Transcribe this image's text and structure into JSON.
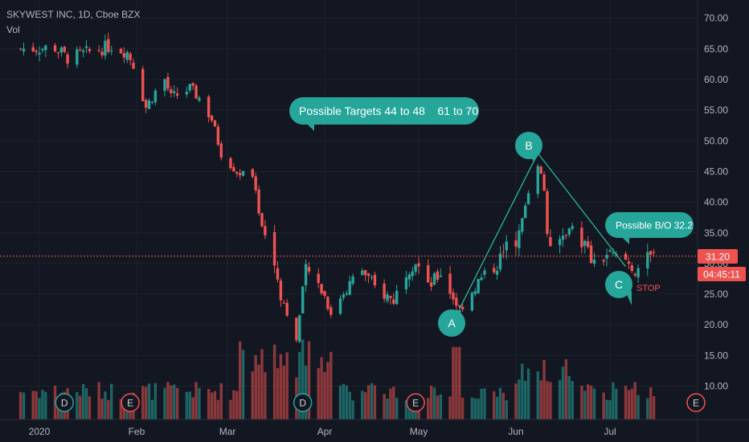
{
  "header": {
    "symbol": "SKYWEST INC, 1D, Cboe BZX",
    "vol_label": "Vol"
  },
  "price_badge": {
    "value": "31.20",
    "countdown": "04:45:11"
  },
  "colors": {
    "up": "#26a69a",
    "down": "#ef5350",
    "bg": "#131722",
    "label_fill": "#2e8f80",
    "callout": "#26a69a"
  },
  "annotations": {
    "targets": "Possible Targets 44 to 48    61 to 70",
    "breakout": "Possible B/O 32.2",
    "point_a": "A",
    "point_b": "B",
    "point_c": "C",
    "stop": "STOP"
  },
  "event_markers": [
    {
      "letter": "D",
      "date": "2020-01-09"
    },
    {
      "letter": "E",
      "date": "2020-01-30"
    },
    {
      "letter": "D",
      "date": "2020-03-25"
    },
    {
      "letter": "E",
      "date": "2020-04-30"
    },
    {
      "letter": "E",
      "date": "2020-07-30"
    }
  ],
  "chart_data": {
    "type": "candlestick",
    "title": "SKYWEST INC, 1D, Cboe BZX",
    "y_ticks": [
      "70.00",
      "65.00",
      "60.00",
      "55.00",
      "50.00",
      "45.00",
      "40.00",
      "35.00",
      "30.00",
      "25.00",
      "20.00",
      "15.00",
      "10.00"
    ],
    "x_ticks": [
      "2020",
      "Feb",
      "Mar",
      "Apr",
      "May",
      "Jun",
      "Jul"
    ],
    "ylim": [
      4,
      72
    ],
    "last_price": 31.2,
    "pattern_points": [
      {
        "label": "A",
        "date": "2020-05-14",
        "price": 22.6
      },
      {
        "label": "B",
        "date": "2020-06-08",
        "price": 48.0
      },
      {
        "label": "C",
        "date": "2020-07-06",
        "price": 29.5
      }
    ],
    "anchors": [
      [
        "2019-12-26",
        65.0
      ],
      [
        "2020-01-06",
        65.2
      ],
      [
        "2020-01-10",
        63.5
      ],
      [
        "2020-01-17",
        64.5
      ],
      [
        "2020-01-24",
        65.5
      ],
      [
        "2020-01-29",
        64.5
      ],
      [
        "2020-01-31",
        62.5
      ],
      [
        "2020-02-04",
        55.5
      ],
      [
        "2020-02-07",
        58.0
      ],
      [
        "2020-02-10",
        60.0
      ],
      [
        "2020-02-12",
        57.0
      ],
      [
        "2020-02-18",
        58.5
      ],
      [
        "2020-02-21",
        57.0
      ],
      [
        "2020-02-25",
        53.5
      ],
      [
        "2020-02-28",
        48.0
      ],
      [
        "2020-03-04",
        45.0
      ],
      [
        "2020-03-09",
        44.0
      ],
      [
        "2020-03-12",
        36.0
      ],
      [
        "2020-03-16",
        30.0
      ],
      [
        "2020-03-18",
        25.0
      ],
      [
        "2020-03-23",
        17.5
      ],
      [
        "2020-03-26",
        29.0
      ],
      [
        "2020-03-31",
        26.0
      ],
      [
        "2020-04-03",
        22.0
      ],
      [
        "2020-04-07",
        25.5
      ],
      [
        "2020-04-13",
        29.0
      ],
      [
        "2020-04-17",
        26.0
      ],
      [
        "2020-04-23",
        24.0
      ],
      [
        "2020-04-27",
        29.0
      ],
      [
        "2020-04-30",
        30.5
      ],
      [
        "2020-05-04",
        26.0
      ],
      [
        "2020-05-08",
        28.5
      ],
      [
        "2020-05-12",
        24.5
      ],
      [
        "2020-05-14",
        22.6
      ],
      [
        "2020-05-20",
        27.0
      ],
      [
        "2020-05-26",
        30.0
      ],
      [
        "2020-05-29",
        32.5
      ],
      [
        "2020-06-02",
        34.5
      ],
      [
        "2020-06-05",
        42.0
      ],
      [
        "2020-06-08",
        46.5
      ],
      [
        "2020-06-10",
        42.0
      ],
      [
        "2020-06-11",
        35.0
      ],
      [
        "2020-06-12",
        31.5
      ],
      [
        "2020-06-16",
        34.5
      ],
      [
        "2020-06-19",
        36.0
      ],
      [
        "2020-06-23",
        33.0
      ],
      [
        "2020-06-26",
        29.5
      ],
      [
        "2020-06-30",
        31.5
      ],
      [
        "2020-07-02",
        31.0
      ],
      [
        "2020-07-06",
        30.5
      ],
      [
        "2020-07-09",
        29.0
      ],
      [
        "2020-07-13",
        30.5
      ],
      [
        "2020-07-15",
        31.2
      ]
    ],
    "volume": {
      "note": "volume bars shown at bottom, taller during March, June and around A",
      "peaks": [
        [
          "2020-03-23",
          1.0
        ],
        [
          "2020-03-20",
          0.85
        ],
        [
          "2020-05-13",
          0.95
        ],
        [
          "2020-05-14",
          0.98
        ],
        [
          "2020-06-11",
          0.75
        ]
      ]
    }
  }
}
